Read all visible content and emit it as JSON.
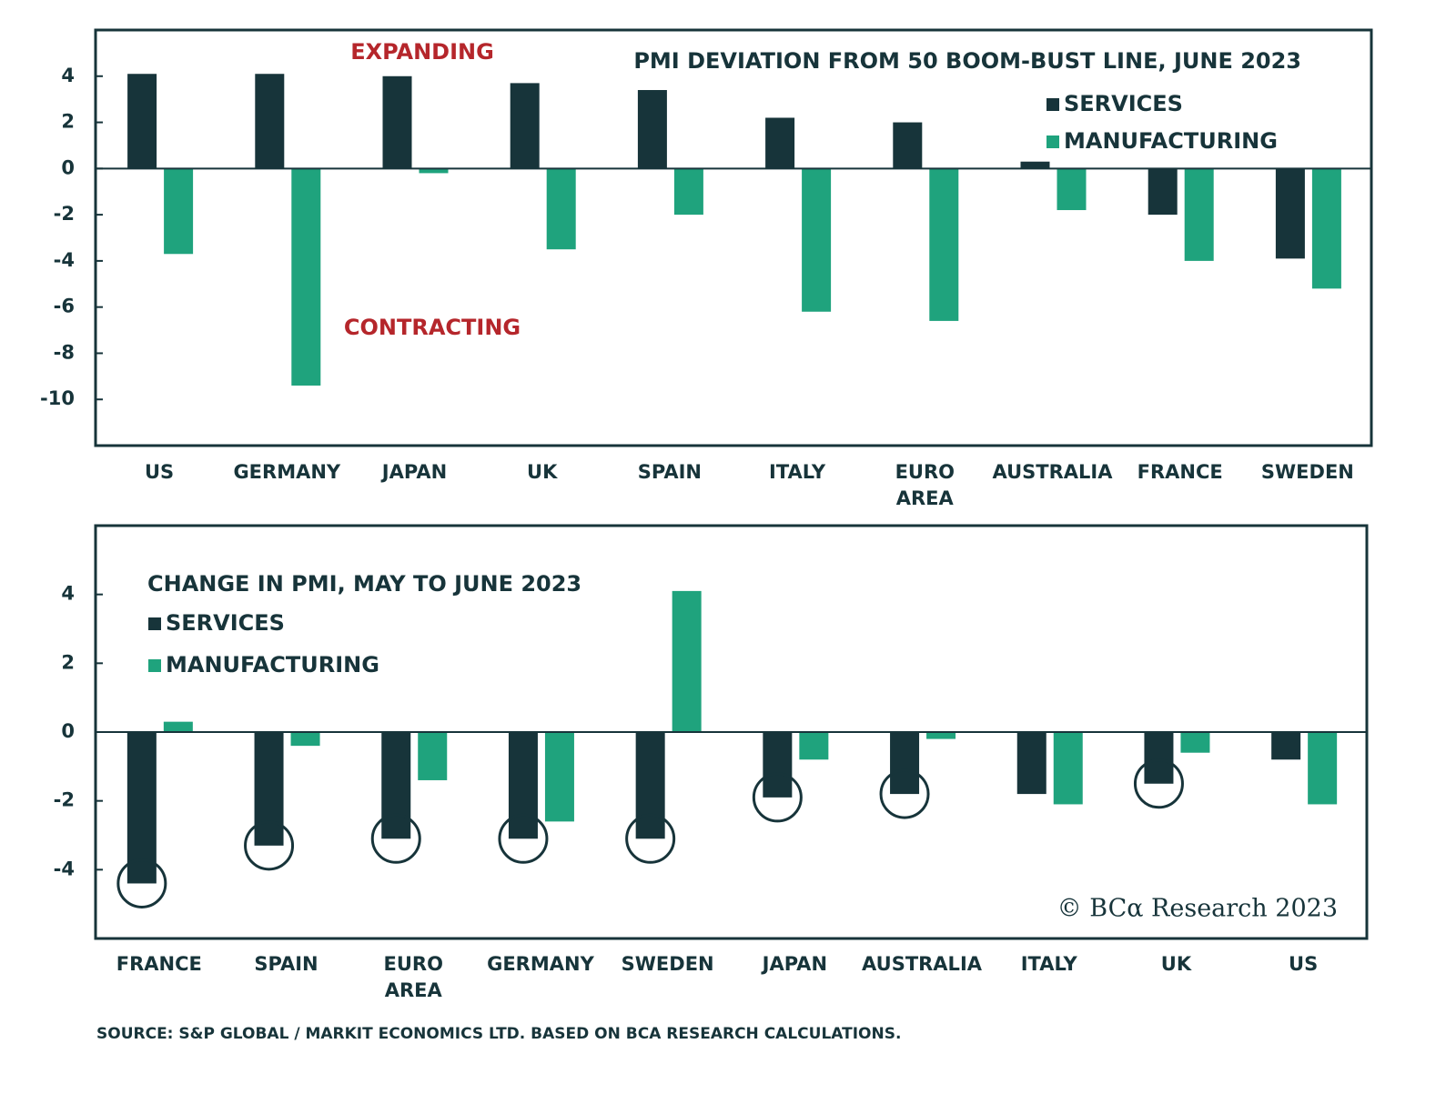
{
  "chart_data": [
    {
      "type": "bar",
      "title": "PMI DEVIATION FROM 50 BOOM-BUST LINE, JUNE 2023",
      "annotations": [
        "EXPANDING",
        "CONTRACTING"
      ],
      "categories": [
        "US",
        "GERMANY",
        "JAPAN",
        "UK",
        "SPAIN",
        "ITALY",
        "EURO AREA",
        "AUSTRALIA",
        "FRANCE",
        "SWEDEN"
      ],
      "series": [
        {
          "name": "SERVICES",
          "color": "#17343a",
          "values": [
            4.1,
            4.1,
            4.0,
            3.7,
            3.4,
            2.2,
            2.0,
            0.3,
            -2.0,
            -3.9
          ]
        },
        {
          "name": "MANUFACTURING",
          "color": "#1fa37d",
          "values": [
            -3.7,
            -9.4,
            -0.2,
            -3.5,
            -2.0,
            -6.2,
            -6.6,
            -1.8,
            -4.0,
            -5.2
          ]
        }
      ],
      "ylim": [
        -12,
        6
      ],
      "yticks": [
        -10,
        -8,
        -6,
        -4,
        -2,
        0,
        2,
        4
      ]
    },
    {
      "type": "bar",
      "title": "CHANGE IN PMI, MAY TO JUNE 2023",
      "credit": "© BCα Research 2023",
      "categories": [
        "FRANCE",
        "SPAIN",
        "EURO AREA",
        "GERMANY",
        "SWEDEN",
        "JAPAN",
        "AUSTRALIA",
        "ITALY",
        "UK",
        "US"
      ],
      "series": [
        {
          "name": "SERVICES",
          "color": "#17343a",
          "values": [
            -4.4,
            -3.3,
            -3.1,
            -3.1,
            -3.1,
            -1.9,
            -1.8,
            -1.8,
            -1.5,
            -0.8
          ],
          "circled": [
            true,
            true,
            true,
            true,
            true,
            true,
            true,
            false,
            true,
            false
          ]
        },
        {
          "name": "MANUFACTURING",
          "color": "#1fa37d",
          "values": [
            0.3,
            -0.4,
            -1.4,
            -2.6,
            4.1,
            -0.8,
            -0.2,
            -2.1,
            -0.6,
            -2.1
          ]
        }
      ],
      "ylim": [
        -6,
        6
      ],
      "yticks": [
        -4,
        -2,
        0,
        2,
        4
      ]
    }
  ],
  "footer": {
    "source": "SOURCE: S&P GLOBAL / MARKIT ECONOMICS LTD. BASED ON BCA RESEARCH CALCULATIONS."
  }
}
